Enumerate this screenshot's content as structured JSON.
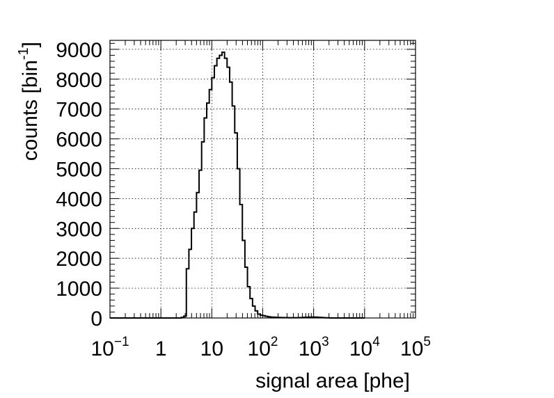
{
  "chart_data": {
    "type": "histogram",
    "xlabel": "signal area [phe]",
    "ylabel": "counts [bin",
    "ylabel_sup": "-1",
    "ylabel_close": "]",
    "x_scale": "log",
    "xlim": [
      0.1,
      100000
    ],
    "ylim": [
      0,
      9300
    ],
    "grid": true,
    "grid_style": "dotted",
    "line_color": "#000000",
    "x_ticks": [
      {
        "value": 0.1,
        "base": "10",
        "exp": "−1"
      },
      {
        "value": 1,
        "base": "1",
        "exp": ""
      },
      {
        "value": 10,
        "base": "10",
        "exp": ""
      },
      {
        "value": 100,
        "base": "10",
        "exp": "2"
      },
      {
        "value": 1000,
        "base": "10",
        "exp": "3"
      },
      {
        "value": 10000,
        "base": "10",
        "exp": "4"
      },
      {
        "value": 100000,
        "base": "10",
        "exp": "5"
      }
    ],
    "y_ticks": [
      {
        "value": 0,
        "label": "0"
      },
      {
        "value": 1000,
        "label": "1000"
      },
      {
        "value": 2000,
        "label": "2000"
      },
      {
        "value": 3000,
        "label": "3000"
      },
      {
        "value": 4000,
        "label": "4000"
      },
      {
        "value": 5000,
        "label": "5000"
      },
      {
        "value": 6000,
        "label": "6000"
      },
      {
        "value": 7000,
        "label": "7000"
      },
      {
        "value": 8000,
        "label": "8000"
      },
      {
        "value": 9000,
        "label": "9000"
      }
    ],
    "bins_per_decade": 20,
    "bin_start": 0.1,
    "counts": [
      0,
      0,
      0,
      0,
      0,
      0,
      0,
      0,
      0,
      0,
      0,
      0,
      0,
      0,
      0,
      0,
      0,
      0,
      0,
      0,
      0,
      0,
      0,
      0,
      0,
      0,
      0,
      0,
      20,
      60,
      1650,
      2300,
      3000,
      3550,
      4200,
      4950,
      5900,
      6700,
      7200,
      7650,
      8050,
      8450,
      8700,
      8800,
      8900,
      8700,
      8400,
      7900,
      7100,
      6200,
      5000,
      3800,
      2600,
      1700,
      1050,
      650,
      400,
      240,
      130,
      95,
      75,
      55,
      40,
      30,
      25,
      20,
      17,
      15,
      13,
      11,
      10,
      10,
      10,
      10,
      12,
      15,
      20,
      25,
      30,
      30,
      30,
      25,
      20,
      15,
      10,
      5,
      2,
      1,
      0,
      0,
      0,
      0,
      0,
      0,
      0,
      0,
      0,
      0,
      0,
      0
    ]
  }
}
